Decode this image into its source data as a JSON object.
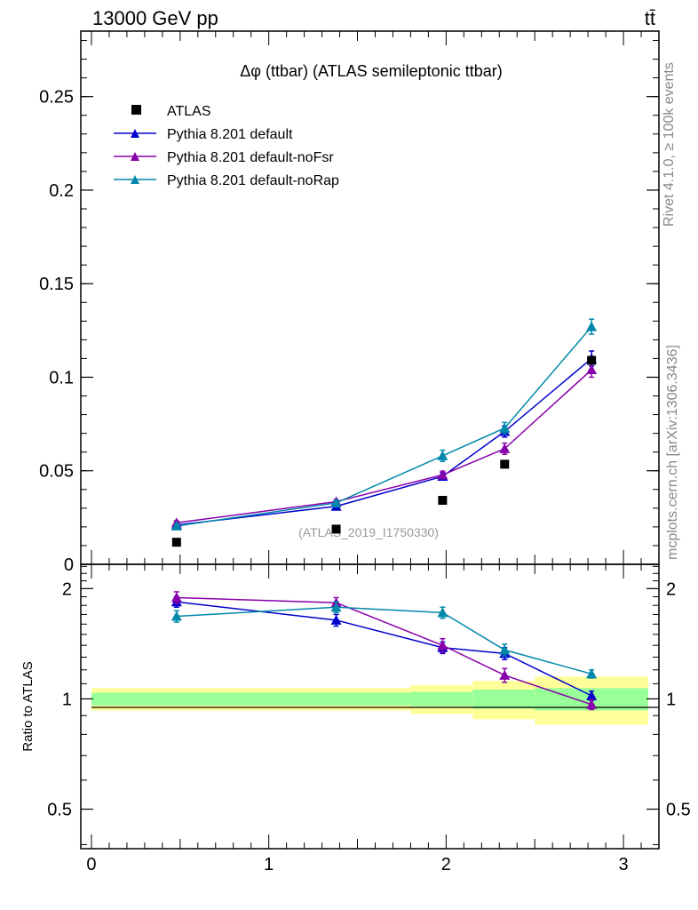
{
  "header": {
    "energy_label": "13000 GeV pp",
    "process_label": "tt̄"
  },
  "side_labels": {
    "rivet": "Rivet 4.1.0, ≥ 100k events",
    "mcplots": "mcplots.cern.ch [arXiv:1306.3436]"
  },
  "chart_data": [
    {
      "type": "line",
      "panel": "main",
      "title": "Δφ (ttbar) (ATLAS semileptonic ttbar)",
      "watermark": "(ATLAS_2019_I1750330)",
      "xlabel": "",
      "ylabel": "",
      "xlim": [
        -0.06,
        3.2
      ],
      "ylim": [
        0,
        0.285
      ],
      "y_ticks": [
        0,
        0.05,
        0.1,
        0.15,
        0.2,
        0.25
      ],
      "y_tick_labels": [
        "0",
        "0.05",
        "0.1",
        "0.15",
        "0.2",
        "0.25"
      ],
      "legend": [
        "ATLAS",
        "Pythia 8.201 default",
        "Pythia 8.201 default-noFsr",
        "Pythia 8.201 default-noRap"
      ],
      "legend_position": "top-left",
      "x": [
        0.48,
        1.38,
        1.98,
        2.33,
        2.82
      ],
      "data_series": {
        "name": "ATLAS",
        "color": "#000000",
        "values": [
          0.0118,
          0.0188,
          0.0342,
          0.0535,
          0.109
        ]
      },
      "series": [
        {
          "name": "Pythia 8.201 default",
          "color": "#0000cc",
          "values": [
            0.021,
            0.031,
            0.047,
            0.071,
            0.11
          ],
          "errors": [
            0.001,
            0.001,
            0.002,
            0.003,
            0.004
          ]
        },
        {
          "name": "Pythia 8.201 default-noFsr",
          "color": "#8800aa",
          "values": [
            0.0222,
            0.0335,
            0.0478,
            0.0618,
            0.104
          ],
          "errors": [
            0.001,
            0.001,
            0.002,
            0.003,
            0.004
          ]
        },
        {
          "name": "Pythia 8.201 default-noRap",
          "color": "#0088aa",
          "values": [
            0.0205,
            0.0328,
            0.058,
            0.0728,
            0.127
          ],
          "errors": [
            0.001,
            0.001,
            0.003,
            0.003,
            0.004
          ]
        }
      ]
    },
    {
      "type": "line",
      "panel": "ratio",
      "ylabel": "Ratio to ATLAS",
      "xlabel": "",
      "xlim": [
        -0.06,
        3.2
      ],
      "ylim": [
        0.39,
        2.33
      ],
      "y_ticks": [
        0.5,
        1,
        2
      ],
      "y_tick_labels": [
        "0.5",
        "1",
        "2"
      ],
      "x_ticks": [
        0,
        1,
        2,
        3
      ],
      "x_tick_labels": [
        "0",
        "1",
        "2",
        "3"
      ],
      "x": [
        0.48,
        1.38,
        1.98,
        2.33,
        2.82
      ],
      "bands": [
        {
          "x_start": 0.0,
          "x_end": 1.8,
          "inner": [
            0.96,
            1.04
          ],
          "outer": [
            0.93,
            1.07
          ]
        },
        {
          "x_start": 1.8,
          "x_end": 2.15,
          "inner": [
            0.955,
            1.045
          ],
          "outer": [
            0.91,
            1.09
          ]
        },
        {
          "x_start": 2.15,
          "x_end": 2.5,
          "inner": [
            0.94,
            1.06
          ],
          "outer": [
            0.88,
            1.12
          ]
        },
        {
          "x_start": 2.5,
          "x_end": 3.14,
          "inner": [
            0.93,
            1.07
          ],
          "outer": [
            0.85,
            1.15
          ]
        }
      ],
      "series": [
        {
          "name": "Pythia 8.201 default",
          "color": "#0000cc",
          "values": [
            1.84,
            1.64,
            1.38,
            1.33,
            1.02
          ],
          "errors": [
            0.06,
            0.06,
            0.05,
            0.05,
            0.03
          ]
        },
        {
          "name": "Pythia 8.201 default-noFsr",
          "color": "#8800aa",
          "values": [
            1.89,
            1.83,
            1.4,
            1.16,
            0.965
          ],
          "errors": [
            0.07,
            0.06,
            0.06,
            0.05,
            0.03
          ]
        },
        {
          "name": "Pythia 8.201 default-noRap",
          "color": "#0088aa",
          "values": [
            1.68,
            1.78,
            1.72,
            1.36,
            1.17
          ],
          "errors": [
            0.06,
            0.06,
            0.06,
            0.05,
            0.03
          ]
        }
      ]
    }
  ]
}
